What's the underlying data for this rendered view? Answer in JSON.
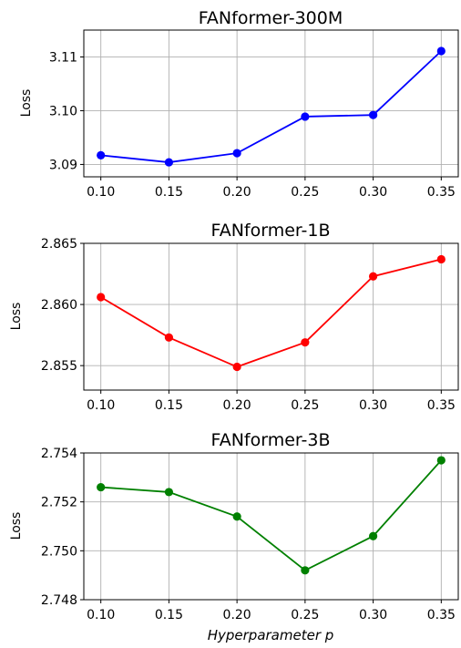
{
  "chart_data": [
    {
      "type": "line",
      "title": "FANformer-300M",
      "xlabel": "",
      "ylabel": "Loss",
      "x": [
        0.1,
        0.15,
        0.2,
        0.25,
        0.3,
        0.35
      ],
      "x_tick_labels": [
        "0.10",
        "0.15",
        "0.20",
        "0.25",
        "0.30",
        "0.35"
      ],
      "xlim": [
        0.0875,
        0.3625
      ],
      "ylim": [
        3.0877,
        3.115
      ],
      "y_ticks": [
        3.09,
        3.1,
        3.11
      ],
      "y_tick_labels": [
        "3.09",
        "3.10",
        "3.11"
      ],
      "grid": true,
      "series": [
        {
          "values": [
            3.0917,
            3.0904,
            3.0921,
            3.0989,
            3.0992,
            3.1111
          ],
          "color": "#0000ff"
        }
      ]
    },
    {
      "type": "line",
      "title": "FANformer-1B",
      "xlabel": "",
      "ylabel": "Loss",
      "x": [
        0.1,
        0.15,
        0.2,
        0.25,
        0.3,
        0.35
      ],
      "x_tick_labels": [
        "0.10",
        "0.15",
        "0.20",
        "0.25",
        "0.30",
        "0.35"
      ],
      "xlim": [
        0.0875,
        0.3625
      ],
      "ylim": [
        2.853,
        2.865
      ],
      "y_ticks": [
        2.855,
        2.86,
        2.865
      ],
      "y_tick_labels": [
        "2.855",
        "2.860",
        "2.865"
      ],
      "grid": true,
      "series": [
        {
          "values": [
            2.8606,
            2.8573,
            2.8549,
            2.8569,
            2.8623,
            2.8637
          ],
          "color": "#ff0000"
        }
      ]
    },
    {
      "type": "line",
      "title": "FANformer-3B",
      "xlabel": "Hyperparameter p",
      "ylabel": "Loss",
      "x": [
        0.1,
        0.15,
        0.2,
        0.25,
        0.3,
        0.35
      ],
      "x_tick_labels": [
        "0.10",
        "0.15",
        "0.20",
        "0.25",
        "0.30",
        "0.35"
      ],
      "xlim": [
        0.0875,
        0.3625
      ],
      "ylim": [
        2.748,
        2.754
      ],
      "y_ticks": [
        2.748,
        2.75,
        2.752,
        2.754
      ],
      "y_tick_labels": [
        "2.748",
        "2.750",
        "2.752",
        "2.754"
      ],
      "grid": true,
      "series": [
        {
          "values": [
            2.7526,
            2.7524,
            2.7514,
            2.7492,
            2.7506,
            2.7537
          ],
          "color": "#008000"
        }
      ]
    }
  ]
}
